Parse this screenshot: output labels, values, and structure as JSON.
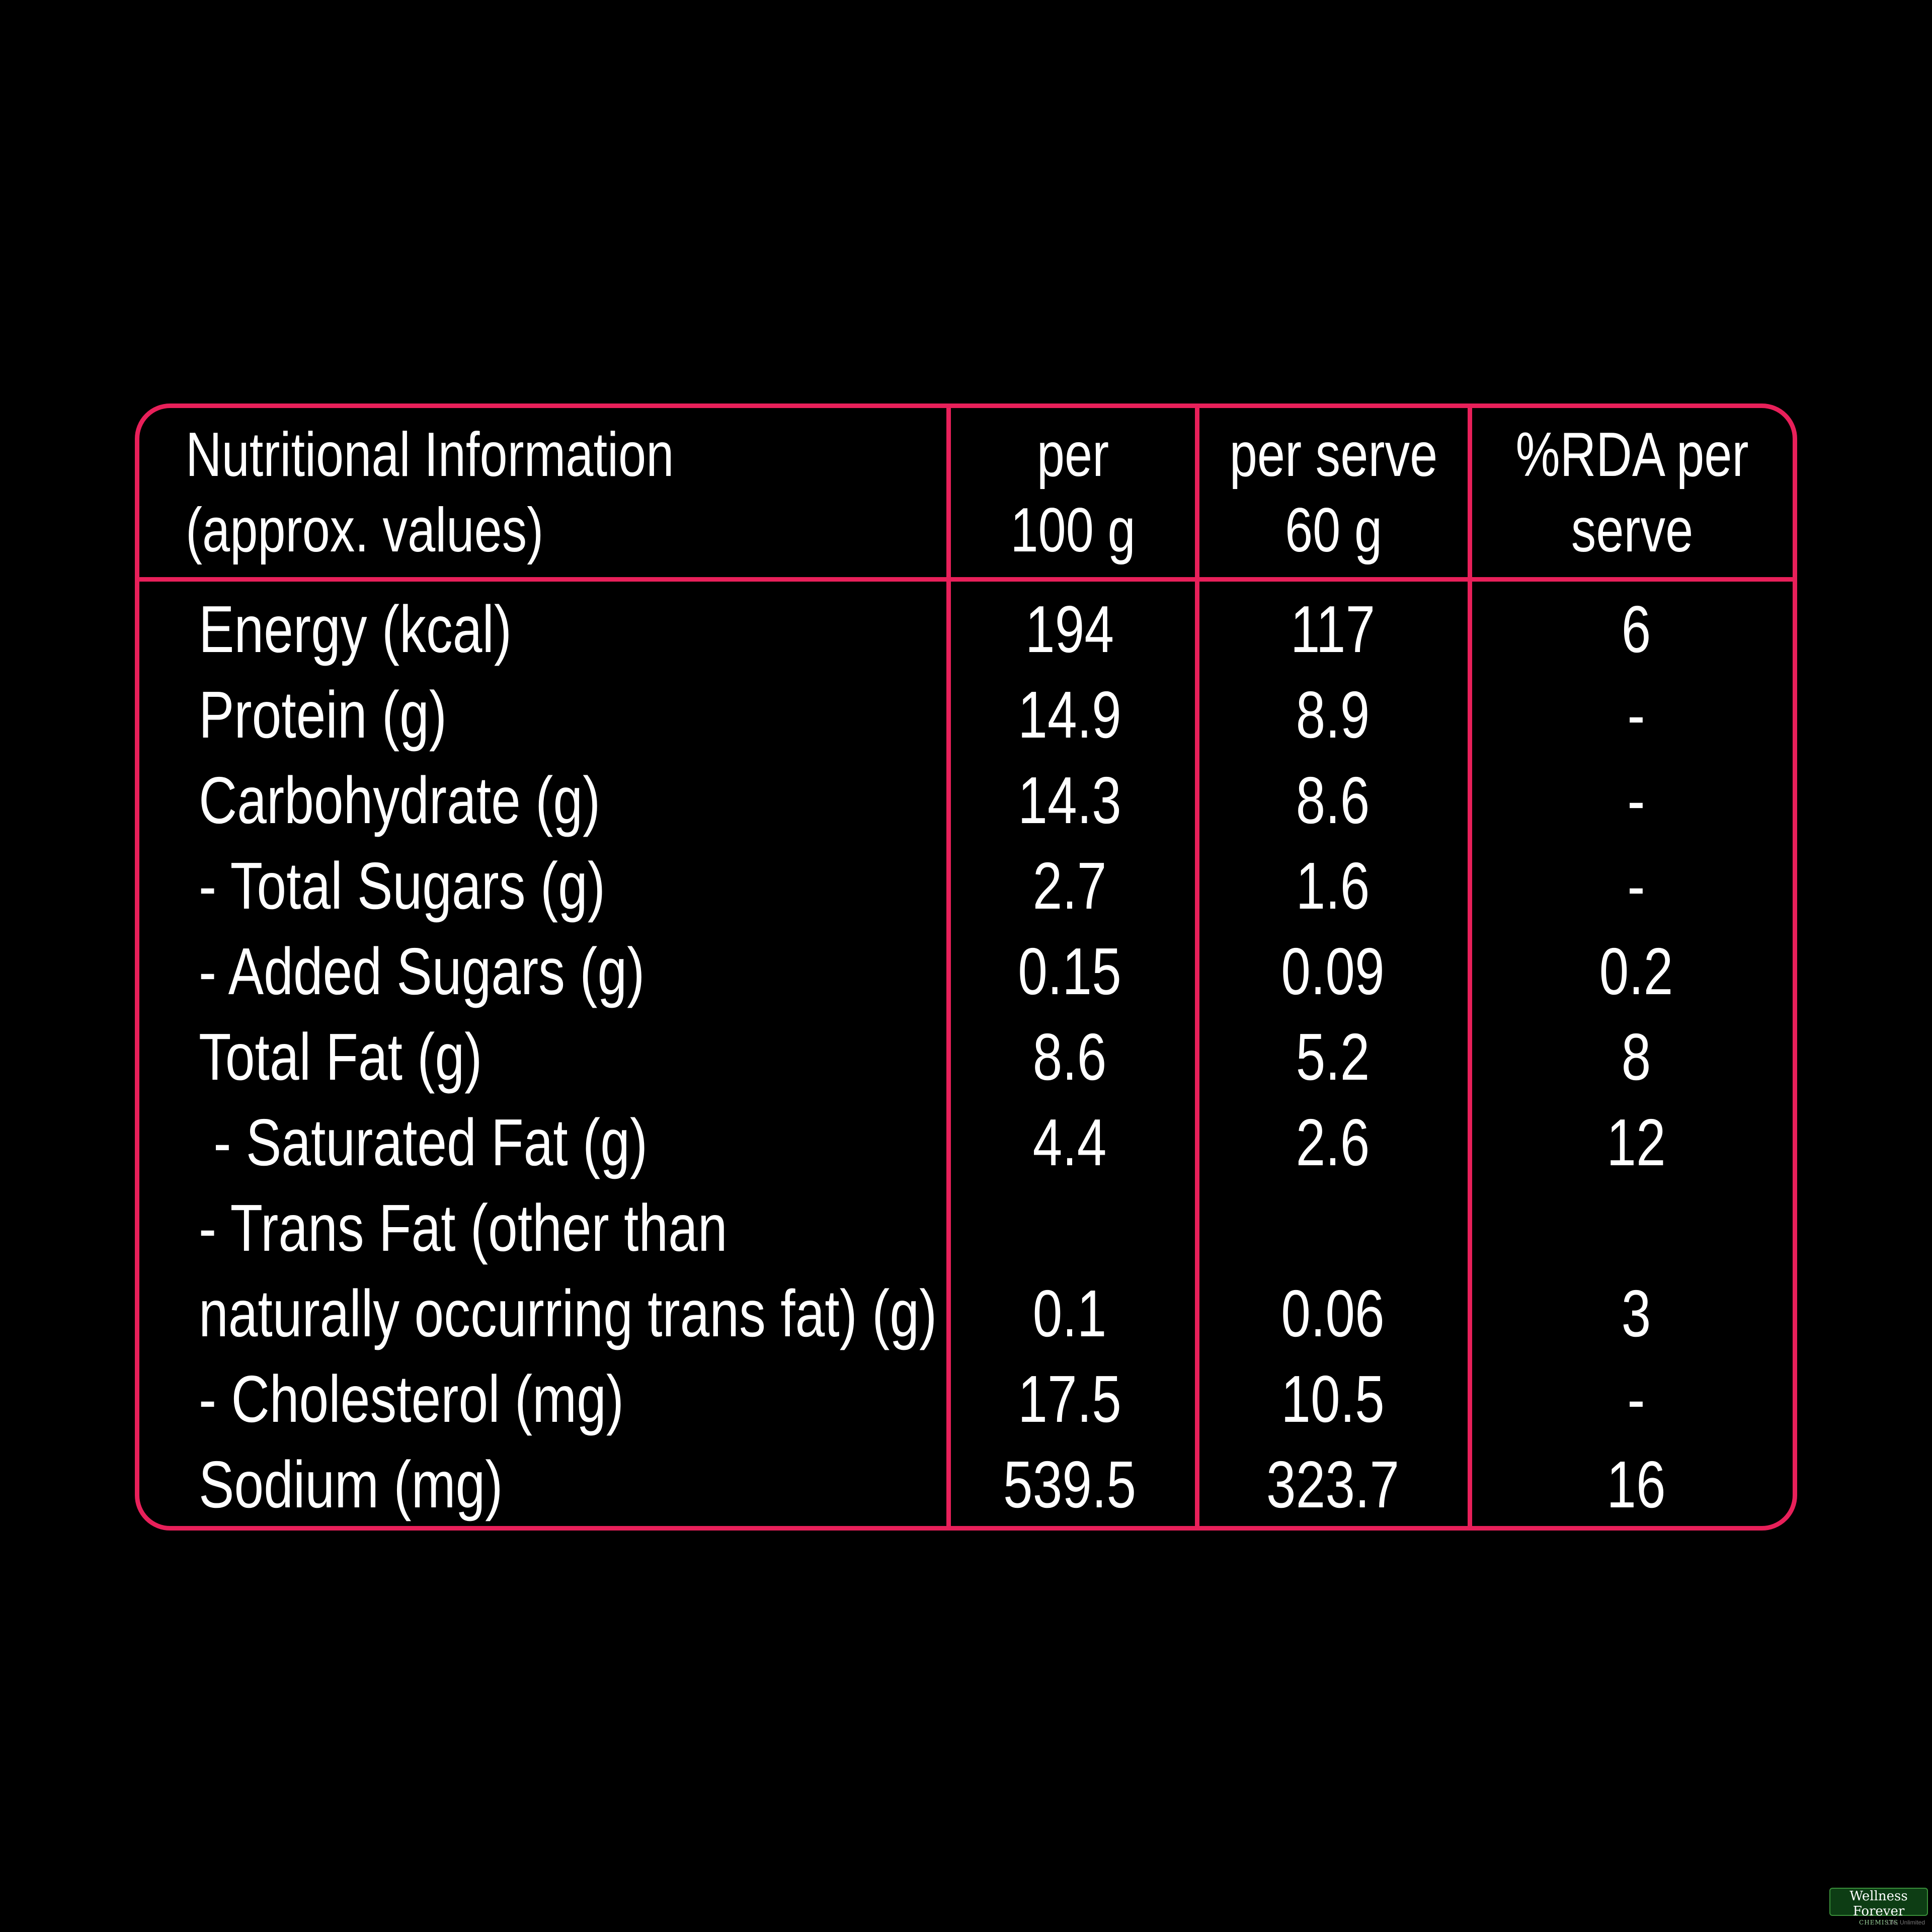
{
  "colors": {
    "background": "#000000",
    "border": "#e8205a",
    "text": "#ffffff"
  },
  "table": {
    "header": {
      "col0_line1": "Nutritional Information",
      "col0_line2": "(approx. values)",
      "col1_line1": "per",
      "col1_line2": "100 g",
      "col2_line1": "per serve",
      "col2_line2": "60 g",
      "col3_line1": "%RDA per",
      "col3_line2": "serve"
    },
    "rows": [
      {
        "label": "Energy (kcal)",
        "per100": "194",
        "perServe": "117",
        "rda": "6"
      },
      {
        "label": "Protein (g)",
        "per100": "14.9",
        "perServe": "8.9",
        "rda": "-"
      },
      {
        "label": "Carbohydrate (g)",
        "per100": "14.3",
        "perServe": "8.6",
        "rda": "-"
      },
      {
        "label": "- Total Sugars (g)",
        "per100": "2.7",
        "perServe": "1.6",
        "rda": "-"
      },
      {
        "label": "- Added Sugars (g)",
        "per100": "0.15",
        "perServe": "0.09",
        "rda": "0.2"
      },
      {
        "label": "Total Fat (g)",
        "per100": "8.6",
        "perServe": "5.2",
        "rda": "8"
      },
      {
        "label": " - Saturated Fat (g)",
        "per100": "4.4",
        "perServe": "2.6",
        "rda": "12"
      },
      {
        "label_line1": "- Trans Fat (other than",
        "label_line2": "naturally occurring trans fat) (g)",
        "per100": "0.1",
        "perServe": "0.06",
        "rda": "3"
      },
      {
        "label": "- Cholesterol (mg)",
        "per100": "17.5",
        "perServe": "10.5",
        "rda": "-"
      },
      {
        "label": "Sodium (mg)",
        "per100": "539.5",
        "perServe": "323.7",
        "rda": "16"
      }
    ]
  },
  "watermark": {
    "brand": "Wellness Forever",
    "sub": "CHEMISTS",
    "tagline": "Life, Unlimited"
  }
}
